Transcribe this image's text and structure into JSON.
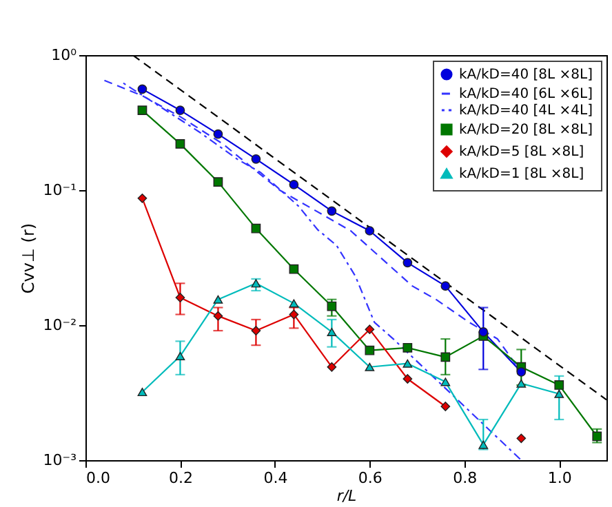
{
  "chart_data": {
    "type": "line",
    "xlabel": "r/L",
    "ylabel": "Cvv⊥ (r)",
    "x": [
      0.12,
      0.2,
      0.28,
      0.36,
      0.44,
      0.52,
      0.6,
      0.68,
      0.76,
      0.84,
      0.92,
      1.0,
      1.08
    ],
    "xlim": [
      0,
      1.1
    ],
    "xticks": [
      {
        "value": 0,
        "label": "0.0"
      },
      0.2,
      0.4,
      0.6,
      0.8,
      {
        "value": 1,
        "label": "1.0"
      }
    ],
    "ylim": [
      0.001,
      1
    ],
    "yticks": [
      {
        "value": 1,
        "label": "10⁰"
      },
      {
        "value": 0.1,
        "label": "10⁻¹"
      },
      {
        "value": 0.01,
        "label": "10⁻²"
      },
      {
        "value": 0.001,
        "label": "10⁻³"
      }
    ],
    "log": "y",
    "grid": false,
    "legend": "top right",
    "series": [
      {
        "name": "kA/kD=40 [8L ×8L]",
        "color": "#0000dd",
        "marker": "circle",
        "line_style": "solid",
        "x": [
          0.12,
          0.2,
          0.28,
          0.36,
          0.44,
          0.52,
          0.6,
          0.68,
          0.76,
          0.84,
          0.92
        ],
        "values": [
          0.56,
          0.39,
          0.26,
          0.17,
          0.11,
          0.07,
          0.05,
          0.029,
          0.0195,
          0.0089,
          0.0045
        ],
        "errors": [
          null,
          null,
          null,
          null,
          null,
          null,
          null,
          null,
          null,
          [
            0.0047,
            0.0135
          ],
          null
        ]
      },
      {
        "name": "kA/kD=40 [6L ×6L]",
        "color": "#3333ff",
        "marker": "none",
        "line_style": "dashed",
        "x": [
          0.04,
          0.12,
          0.2,
          0.29,
          0.41,
          0.56,
          0.69,
          0.74,
          0.81,
          0.87,
          0.92
        ],
        "values": [
          0.65,
          0.5,
          0.35,
          0.22,
          0.1,
          0.05,
          0.0195,
          0.0155,
          0.0105,
          0.0079,
          0.0045
        ]
      },
      {
        "name": "kA/kD=40 [4L ×4L]",
        "color": "#3333ff",
        "marker": "none",
        "line_style": "dotted",
        "x": [
          0.08,
          0.16,
          0.24,
          0.32,
          0.37,
          0.45,
          0.49,
          0.53,
          0.57,
          0.61,
          0.65,
          0.92
        ],
        "values": [
          0.62,
          0.41,
          0.27,
          0.17,
          0.135,
          0.076,
          0.051,
          0.039,
          0.023,
          0.0105,
          0.0079,
          0.001
        ]
      },
      {
        "name": "kA/kD=20 [8L ×8L]",
        "color": "#007700",
        "marker": "square",
        "line_style": "solid",
        "values": [
          0.39,
          0.22,
          0.115,
          0.052,
          0.026,
          0.0138,
          0.0065,
          0.0068,
          0.0058,
          0.0083,
          0.0049,
          0.0036,
          0.0015
        ],
        "errors": [
          null,
          null,
          null,
          null,
          null,
          [
            0.0117,
            0.0155
          ],
          null,
          null,
          [
            0.0043,
            0.0079
          ],
          null,
          [
            0.0036,
            0.0066
          ],
          null,
          [
            0.00135,
            0.0017
          ]
        ]
      },
      {
        "name": "kA/kD=5 [8L ×8L]",
        "color": "#dd0000",
        "marker": "diamond",
        "line_style": "solid",
        "values": [
          0.087,
          0.016,
          0.0117,
          0.0091,
          0.012,
          0.0049,
          0.0093,
          0.004,
          0.0025,
          null,
          0.00145,
          null,
          null
        ],
        "errors": [
          null,
          [
            0.012,
            0.0204
          ],
          [
            0.0091,
            0.0135
          ],
          [
            0.0071,
            0.011
          ],
          [
            0.0095,
            0.0135
          ],
          null,
          null,
          null,
          null,
          null,
          null,
          null,
          null
        ]
      },
      {
        "name": "kA/kD=1 [8L ×8L]",
        "color": "#00bbbb",
        "marker": "triangle",
        "line_style": "solid",
        "values": [
          0.0032,
          0.0059,
          0.0155,
          0.0204,
          0.0145,
          0.0089,
          0.0049,
          0.0052,
          0.0038,
          0.0013,
          0.0037,
          0.0031,
          null
        ],
        "errors": [
          null,
          [
            0.0043,
            0.0076
          ],
          null,
          [
            0.018,
            0.022
          ],
          null,
          [
            0.0069,
            0.011
          ],
          null,
          null,
          null,
          [
            0.0012,
            0.002
          ],
          null,
          [
            0.002,
            0.0042
          ],
          null
        ]
      },
      {
        "color": "#000000",
        "marker": "none",
        "line_style": "dashed",
        "x": [
          0.1,
          1.1
        ],
        "values": [
          1.0,
          0.0028
        ]
      }
    ]
  }
}
